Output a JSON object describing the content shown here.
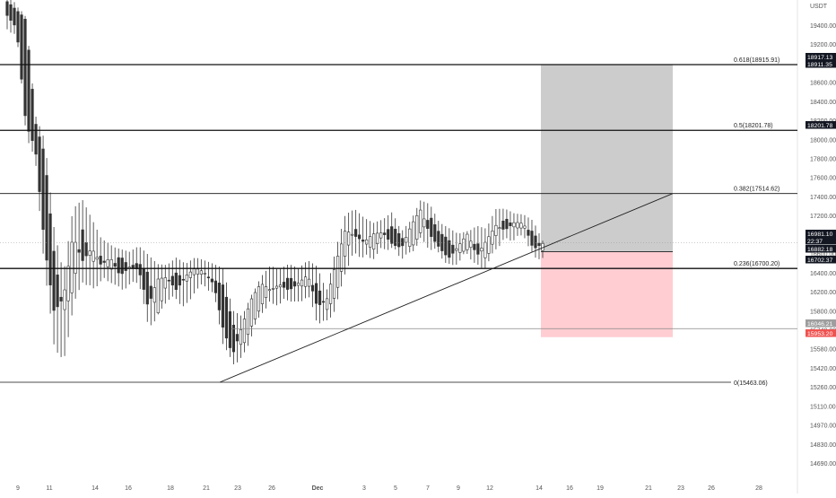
{
  "chart_data": {
    "type": "candlestick",
    "currency_label": "USDT",
    "y_ticks": [
      "19400.00",
      "19200.00",
      "18800.00",
      "18600.00",
      "18400.00",
      "18200.00",
      "18000.00",
      "17800.00",
      "17600.00",
      "17400.00",
      "17200.00",
      "16800.00",
      "16600.00",
      "16400.00",
      "16200.00",
      "15800.00",
      "15740.00",
      "15580.00",
      "15420.00",
      "15260.00",
      "15110.00",
      "14970.00",
      "14830.00",
      "14690.00"
    ],
    "x_ticks": [
      "9",
      "11",
      "14",
      "16",
      "18",
      "21",
      "23",
      "26",
      "Dec",
      "3",
      "5",
      "7",
      "9",
      "12",
      "14",
      "16",
      "19",
      "21",
      "23",
      "26",
      "28"
    ],
    "fib_levels": [
      {
        "label": "0.618(18915.91)",
        "value": 18915.91
      },
      {
        "label": "0.5(18201.78)",
        "value": 18201.78
      },
      {
        "label": "0.382(17514.62)",
        "value": 17514.62
      },
      {
        "label": "0.236(16700.20)",
        "value": 16700.2
      },
      {
        "label": "0(15463.06)",
        "value": 15463.06
      }
    ],
    "price_badges": [
      {
        "text": "18917.13",
        "style": "dark"
      },
      {
        "text": "18911.35",
        "style": "dark"
      },
      {
        "text": "18201.78",
        "style": "dark"
      },
      {
        "text": "16981.10",
        "style": "dark"
      },
      {
        "text": "22:37",
        "style": "dark"
      },
      {
        "text": "16882.18",
        "style": "dark"
      },
      {
        "text": "16702.37",
        "style": "dark"
      },
      {
        "text": "16046.21",
        "style": "grey"
      },
      {
        "text": "15953.20",
        "style": "red"
      }
    ],
    "position_tool": {
      "entry": 16882.18,
      "target": 18917.13,
      "stop": 15953.2,
      "profit_color": "#cccccc",
      "loss_color": "#ffcdd2"
    },
    "trendline": {
      "from_value": 15463.06,
      "to_value": 17514.62
    },
    "support_line": 16046.21,
    "last_price": 16981.1,
    "colors": {
      "candle": "#333333",
      "line": "#111111",
      "axis_text": "#555555"
    }
  }
}
